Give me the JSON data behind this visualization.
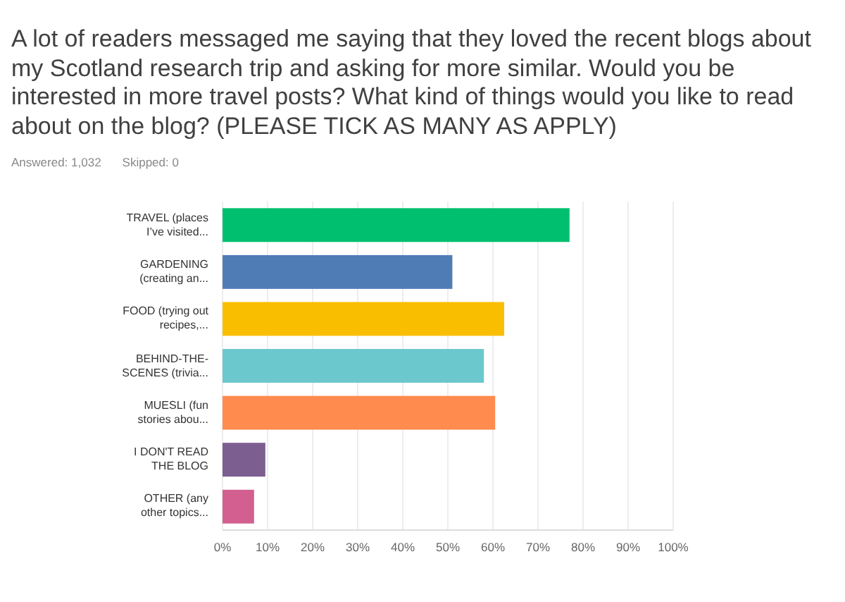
{
  "chart_data": {
    "type": "bar",
    "orientation": "horizontal",
    "title": "A lot of readers messaged me saying that they loved the recent blogs about my Scotland research trip and asking for more similar. Would you be interested in more travel posts? What kind of things would you like to read about on the blog? (PLEASE TICK AS MANY AS APPLY)",
    "annotations": [
      "Answered: 1,032",
      "Skipped: 0"
    ],
    "categories": [
      "TRAVEL (places I’ve visited...",
      "GARDENING (creating an...",
      "FOOD (trying out recipes,...",
      "BEHIND-THE-SCENES (trivia...",
      "MUESLI (fun stories abou...",
      "I DON'T READ THE BLOG",
      "OTHER (any other topics..."
    ],
    "values": [
      77,
      51,
      62.5,
      58,
      60.5,
      9.5,
      7
    ],
    "colors": [
      "#00bf6f",
      "#507cb6",
      "#f9be00",
      "#6bc8cd",
      "#ff8b4f",
      "#7d5e90",
      "#d25f90"
    ],
    "xlim": [
      0,
      100
    ],
    "xticks": [
      {
        "value": 0,
        "label": "0%"
      },
      {
        "value": 10,
        "label": "10%"
      },
      {
        "value": 20,
        "label": "20%"
      },
      {
        "value": 30,
        "label": "30%"
      },
      {
        "value": 40,
        "label": "40%"
      },
      {
        "value": 50,
        "label": "50%"
      },
      {
        "value": 60,
        "label": "60%"
      },
      {
        "value": 70,
        "label": "70%"
      },
      {
        "value": 80,
        "label": "80%"
      },
      {
        "value": 90,
        "label": "90%"
      },
      {
        "value": 100,
        "label": "100%"
      }
    ],
    "grid": "x"
  }
}
